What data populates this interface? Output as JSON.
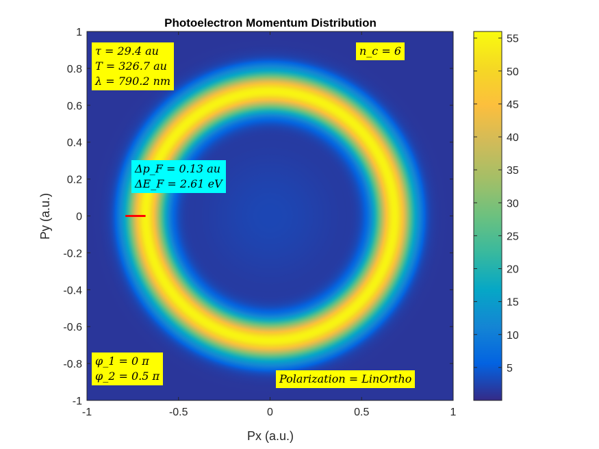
{
  "chart_data": {
    "type": "heatmap",
    "title": "Photoelectron Momentum Distribution",
    "xlabel": "Px (a.u.)",
    "ylabel": "Py (a.u.)",
    "xlim": [
      -1,
      1
    ],
    "ylim": [
      -1,
      1
    ],
    "xticks": [
      "-1",
      "-0.5",
      "0",
      "0.5",
      "1"
    ],
    "yticks": [
      "-1",
      "-0.8",
      "-0.6",
      "-0.4",
      "-0.2",
      "0",
      "0.2",
      "0.4",
      "0.6",
      "0.8",
      "1"
    ],
    "colormap": "parula",
    "colorbar": {
      "range": [
        0,
        56
      ],
      "ticks": [
        "5",
        "10",
        "15",
        "20",
        "25",
        "30",
        "35",
        "40",
        "45",
        "50",
        "55"
      ]
    },
    "ring": {
      "center": [
        0,
        0
      ],
      "peak_radius": 0.68,
      "width": 0.1,
      "peak_value": 55
    },
    "marker": {
      "x": [
        -0.79,
        -0.68
      ],
      "y": 0,
      "color": "#ff0000"
    },
    "annotations": {
      "pulse": [
        "τ = 29.4 au",
        "T = 326.7 au",
        "λ = 790.2 nm"
      ],
      "cycles": "n_c = 6",
      "delta": [
        "Δp_F = 0.13 au",
        "ΔE_F = 2.61 eV"
      ],
      "phase": [
        "φ_1 = 0 π",
        "φ_2 = 0.5 π"
      ],
      "polarization": "Polarization = LinOrtho"
    }
  }
}
